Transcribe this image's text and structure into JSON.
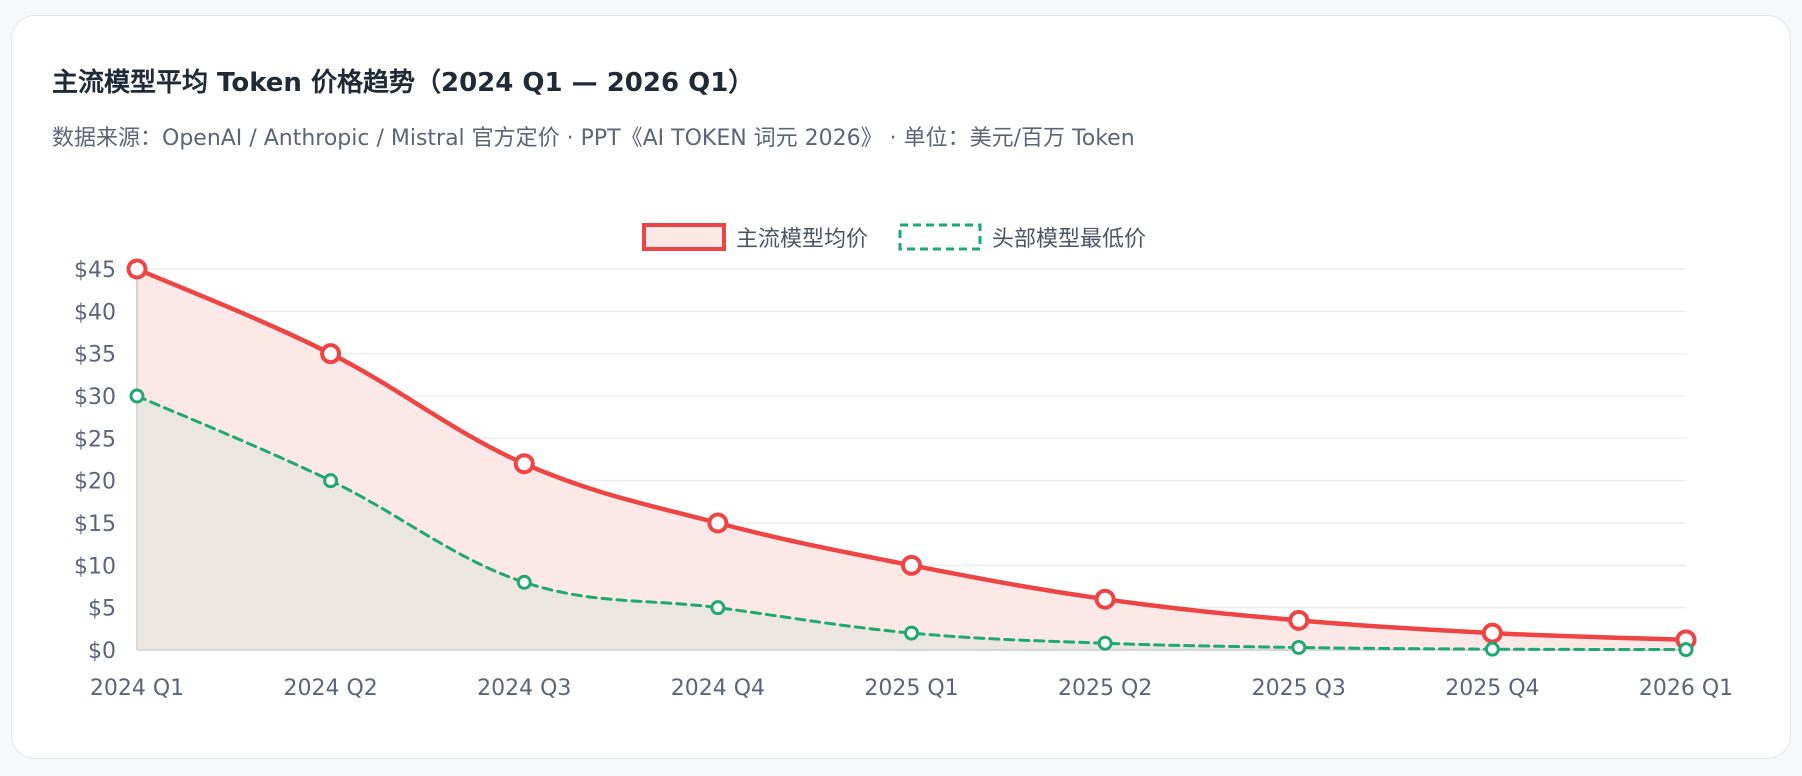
{
  "title": "主流模型平均 Token 价格趋势（2024 Q1 — 2026 Q1）",
  "subtitle": "数据来源：OpenAI / Anthropic / Mistral 官方定价 · PPT《AI TOKEN 词元 2026》 · 单位：美元/百万 Token",
  "chart_data": {
    "type": "area",
    "title": "主流模型平均 Token 价格趋势（2024 Q1 — 2026 Q1）",
    "categories": [
      "2024 Q1",
      "2024 Q2",
      "2024 Q3",
      "2024 Q4",
      "2025 Q1",
      "2025 Q2",
      "2025 Q3",
      "2025 Q4",
      "2026 Q1"
    ],
    "series": [
      {
        "name": "主流模型均价",
        "values": [
          45,
          35,
          22,
          15,
          10,
          6,
          3.5,
          2,
          1.2
        ],
        "color": "#ef4444",
        "fill": "#fde8e8",
        "dashed": false
      },
      {
        "name": "头部模型最低价",
        "values": [
          30,
          20,
          8,
          5,
          2,
          0.8,
          0.3,
          0.1,
          0.05
        ],
        "color": "#1fa971",
        "fill": "#ece6e3",
        "dashed": true
      }
    ],
    "yticks": [
      "$0",
      "$5",
      "$10",
      "$15",
      "$20",
      "$25",
      "$30",
      "$35",
      "$40",
      "$45"
    ],
    "ylim": [
      0,
      45
    ],
    "grid": true,
    "legend_position": "top-center"
  }
}
